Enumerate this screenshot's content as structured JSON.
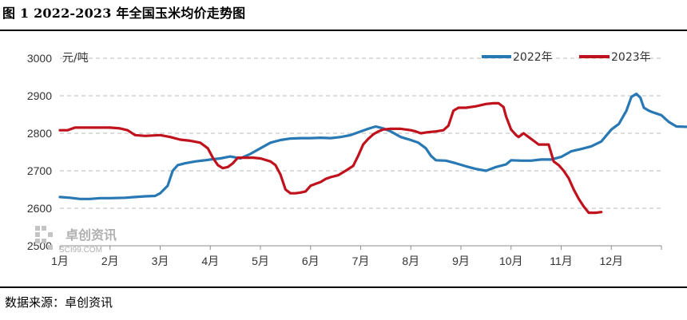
{
  "header": {
    "title": "图 1 2022-2023 年全国玉米均价走势图"
  },
  "footer": {
    "source": "数据来源：卓创资讯"
  },
  "watermark": {
    "name": "卓创资讯",
    "domain": "SCI99.COM"
  },
  "colors": {
    "series_2022": "#2878b4",
    "series_2023": "#c0121c",
    "grid": "#b8b8b8"
  },
  "chart_data": {
    "type": "line",
    "title": "",
    "ylabel": "元/吨",
    "ylim": [
      2500,
      3000
    ],
    "yticks": [
      2500,
      2600,
      2700,
      2800,
      2900,
      3000
    ],
    "xlim": [
      0,
      12
    ],
    "xtick_positions": [
      0,
      1,
      2,
      3,
      4,
      5,
      6,
      7,
      8,
      9,
      10,
      11
    ],
    "xtick_labels": [
      "1月",
      "2月",
      "3月",
      "4月",
      "5月",
      "6月",
      "7月",
      "8月",
      "9月",
      "10月",
      "11月",
      "12月"
    ],
    "grid": "horizontal dashed",
    "legend_position": "top-right",
    "series": [
      {
        "name": "2022年",
        "color": "#2878b4",
        "points": [
          [
            0.0,
            2630
          ],
          [
            0.2,
            2628
          ],
          [
            0.4,
            2625
          ],
          [
            0.6,
            2625
          ],
          [
            0.8,
            2627
          ],
          [
            1.0,
            2627
          ],
          [
            1.3,
            2628
          ],
          [
            1.5,
            2630
          ],
          [
            1.7,
            2632
          ],
          [
            1.9,
            2633
          ],
          [
            2.0,
            2640
          ],
          [
            2.15,
            2660
          ],
          [
            2.25,
            2700
          ],
          [
            2.35,
            2715
          ],
          [
            2.5,
            2720
          ],
          [
            2.7,
            2725
          ],
          [
            2.9,
            2728
          ],
          [
            3.0,
            2730
          ],
          [
            3.2,
            2733
          ],
          [
            3.4,
            2738
          ],
          [
            3.6,
            2733
          ],
          [
            3.8,
            2745
          ],
          [
            4.0,
            2760
          ],
          [
            4.2,
            2775
          ],
          [
            4.4,
            2782
          ],
          [
            4.6,
            2786
          ],
          [
            4.8,
            2787
          ],
          [
            5.0,
            2787
          ],
          [
            5.2,
            2788
          ],
          [
            5.4,
            2787
          ],
          [
            5.6,
            2790
          ],
          [
            5.8,
            2795
          ],
          [
            6.0,
            2805
          ],
          [
            6.15,
            2812
          ],
          [
            6.3,
            2818
          ],
          [
            6.45,
            2813
          ],
          [
            6.6,
            2805
          ],
          [
            6.8,
            2790
          ],
          [
            7.0,
            2782
          ],
          [
            7.15,
            2775
          ],
          [
            7.3,
            2760
          ],
          [
            7.4,
            2740
          ],
          [
            7.5,
            2728
          ],
          [
            7.7,
            2727
          ],
          [
            7.9,
            2720
          ],
          [
            8.1,
            2712
          ],
          [
            8.3,
            2705
          ],
          [
            8.5,
            2700
          ],
          [
            8.7,
            2710
          ],
          [
            8.9,
            2717
          ],
          [
            9.0,
            2728
          ],
          [
            9.2,
            2727
          ],
          [
            9.4,
            2727
          ],
          [
            9.6,
            2730
          ],
          [
            9.8,
            2730
          ],
          [
            10.0,
            2737
          ],
          [
            10.2,
            2752
          ],
          [
            10.4,
            2758
          ],
          [
            10.6,
            2765
          ],
          [
            10.8,
            2778
          ],
          [
            11.0,
            2810
          ],
          [
            11.15,
            2825
          ],
          [
            11.3,
            2860
          ],
          [
            11.4,
            2897
          ],
          [
            11.5,
            2905
          ],
          [
            11.58,
            2895
          ],
          [
            11.65,
            2868
          ],
          [
            11.75,
            2860
          ],
          [
            11.85,
            2855
          ],
          [
            12.0,
            2848
          ],
          [
            12.15,
            2830
          ],
          [
            12.3,
            2818
          ],
          [
            12.55,
            2817
          ]
        ]
      },
      {
        "name": "2023年",
        "color": "#c0121c",
        "points": [
          [
            0.0,
            2808
          ],
          [
            0.15,
            2808
          ],
          [
            0.3,
            2815
          ],
          [
            0.5,
            2815
          ],
          [
            0.8,
            2815
          ],
          [
            1.0,
            2815
          ],
          [
            1.2,
            2813
          ],
          [
            1.35,
            2808
          ],
          [
            1.5,
            2795
          ],
          [
            1.7,
            2793
          ],
          [
            2.0,
            2795
          ],
          [
            2.2,
            2790
          ],
          [
            2.4,
            2783
          ],
          [
            2.6,
            2780
          ],
          [
            2.8,
            2775
          ],
          [
            2.95,
            2760
          ],
          [
            3.05,
            2735
          ],
          [
            3.15,
            2715
          ],
          [
            3.25,
            2707
          ],
          [
            3.35,
            2710
          ],
          [
            3.45,
            2720
          ],
          [
            3.55,
            2735
          ],
          [
            3.7,
            2735
          ],
          [
            3.85,
            2735
          ],
          [
            4.0,
            2733
          ],
          [
            4.2,
            2725
          ],
          [
            4.3,
            2715
          ],
          [
            4.4,
            2690
          ],
          [
            4.5,
            2650
          ],
          [
            4.6,
            2640
          ],
          [
            4.7,
            2640
          ],
          [
            4.8,
            2642
          ],
          [
            4.9,
            2645
          ],
          [
            5.0,
            2660
          ],
          [
            5.1,
            2665
          ],
          [
            5.2,
            2670
          ],
          [
            5.3,
            2678
          ],
          [
            5.4,
            2683
          ],
          [
            5.55,
            2688
          ],
          [
            5.7,
            2700
          ],
          [
            5.85,
            2713
          ],
          [
            5.95,
            2740
          ],
          [
            6.05,
            2770
          ],
          [
            6.15,
            2785
          ],
          [
            6.25,
            2797
          ],
          [
            6.35,
            2805
          ],
          [
            6.45,
            2810
          ],
          [
            6.6,
            2812
          ],
          [
            6.8,
            2812
          ],
          [
            7.0,
            2808
          ],
          [
            7.1,
            2805
          ],
          [
            7.2,
            2800
          ],
          [
            7.35,
            2803
          ],
          [
            7.5,
            2805
          ],
          [
            7.65,
            2808
          ],
          [
            7.75,
            2820
          ],
          [
            7.85,
            2860
          ],
          [
            7.95,
            2868
          ],
          [
            8.1,
            2868
          ],
          [
            8.3,
            2872
          ],
          [
            8.5,
            2878
          ],
          [
            8.65,
            2880
          ],
          [
            8.75,
            2880
          ],
          [
            8.85,
            2870
          ],
          [
            8.9,
            2845
          ],
          [
            9.0,
            2810
          ],
          [
            9.1,
            2795
          ],
          [
            9.15,
            2790
          ],
          [
            9.25,
            2800
          ],
          [
            9.35,
            2790
          ],
          [
            9.45,
            2780
          ],
          [
            9.55,
            2770
          ],
          [
            9.65,
            2770
          ],
          [
            9.75,
            2770
          ],
          [
            9.85,
            2725
          ],
          [
            9.95,
            2715
          ],
          [
            10.05,
            2700
          ],
          [
            10.15,
            2680
          ],
          [
            10.25,
            2650
          ],
          [
            10.35,
            2625
          ],
          [
            10.45,
            2605
          ],
          [
            10.55,
            2588
          ],
          [
            10.7,
            2588
          ],
          [
            10.8,
            2590
          ]
        ]
      }
    ]
  }
}
